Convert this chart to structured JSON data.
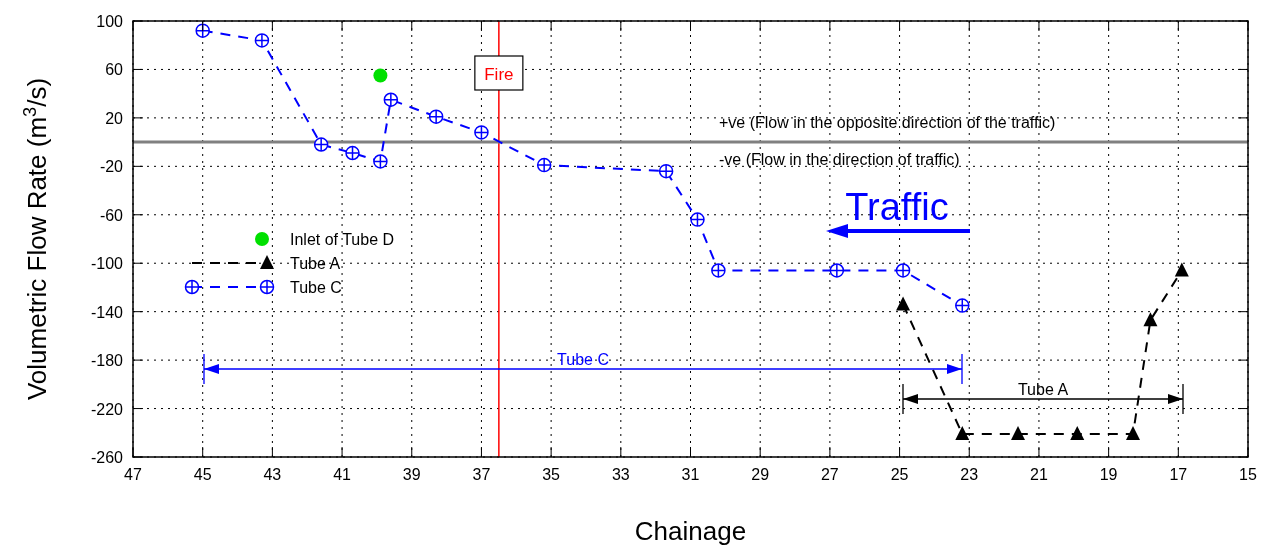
{
  "chart_data": {
    "type": "line",
    "xlabel": "Chainage",
    "ylabel": "Volumetric Flow Rate (m$^{3}$/s)",
    "xlim": [
      47,
      15
    ],
    "xticks": [
      47,
      45,
      43,
      41,
      39,
      37,
      35,
      33,
      31,
      29,
      27,
      25,
      23,
      21,
      19,
      17,
      15
    ],
    "ylim": [
      -260,
      100
    ],
    "yticks": [
      -260,
      -220,
      -180,
      -140,
      -100,
      -60,
      -20,
      20,
      60,
      100
    ],
    "grid": true,
    "legend": "left",
    "line_style": "dashed",
    "series": [
      {
        "name": "Inlet of Tube D",
        "type": "scatter",
        "color": "#00e000",
        "marker": "circle",
        "x": [
          39.9
        ],
        "values": [
          55
        ]
      },
      {
        "name": "Tube A",
        "color": "#000000",
        "marker": "triangle",
        "x": [
          24.9,
          23.2,
          21.6,
          19.9,
          18.3,
          17.8,
          16.9
        ],
        "values": [
          -134,
          -241,
          -241,
          -241,
          -241,
          -147,
          -106
        ]
      },
      {
        "name": "Tube C",
        "color": "#0000ff",
        "marker": "circle",
        "x": [
          45,
          43.3,
          41.6,
          40.7,
          39.9,
          39.6,
          38.3,
          37,
          35.2,
          31.7,
          30.8,
          30.2,
          26.8,
          24.9,
          23.2
        ],
        "values": [
          92,
          84,
          -2,
          -9,
          -16,
          35,
          21,
          8,
          -19,
          -24,
          -64,
          -106,
          -106,
          -106,
          -135
        ]
      }
    ],
    "ref_lines": [
      {
        "axis": "x",
        "value": 36.5,
        "label": "Fire",
        "color": "#ff0000"
      },
      {
        "axis": "y",
        "value": 0,
        "color": "#808080"
      }
    ],
    "annotations": [
      "+ve (Flow in the opposite direction of the traffic)",
      "-ve (Flow in the direction of traffic)",
      "Traffic",
      "Tube C",
      "Tube A"
    ]
  }
}
